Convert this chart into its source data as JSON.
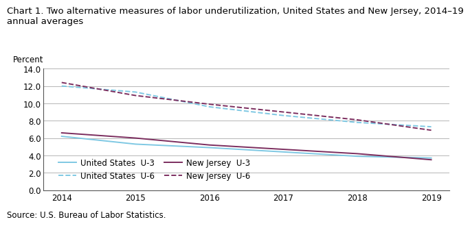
{
  "title_line1": "Chart 1. Two alternative measures of labor underutilization, United States and New Jersey, 2014–19",
  "title_line2": "annual averages",
  "ylabel": "Percent",
  "source": "Source: U.S. Bureau of Labor Statistics.",
  "years": [
    2014,
    2015,
    2016,
    2017,
    2018,
    2019
  ],
  "us_u3": [
    6.2,
    5.3,
    4.9,
    4.4,
    3.9,
    3.7
  ],
  "us_u6": [
    12.0,
    11.3,
    9.6,
    8.6,
    7.8,
    7.3
  ],
  "nj_u3": [
    6.6,
    6.0,
    5.2,
    4.7,
    4.2,
    3.5
  ],
  "nj_u6": [
    12.4,
    10.9,
    9.9,
    9.0,
    8.1,
    6.9
  ],
  "us_u3_color": "#7EC8E3",
  "us_u6_color": "#7EC8E3",
  "nj_u3_color": "#7B2D5E",
  "nj_u6_color": "#7B2D5E",
  "ylim": [
    0.0,
    14.0
  ],
  "yticks": [
    0.0,
    2.0,
    4.0,
    6.0,
    8.0,
    10.0,
    12.0,
    14.0
  ],
  "xticks": [
    2014,
    2015,
    2016,
    2017,
    2018,
    2019
  ],
  "grid_color": "#aaaaaa",
  "bg_color": "#ffffff",
  "legend_labels": [
    "United States  U-3",
    "United States  U-6",
    "New Jersey  U-3",
    "New Jersey  U-6"
  ],
  "title_fontsize": 9.5,
  "axis_label_fontsize": 8.5,
  "tick_fontsize": 8.5,
  "source_fontsize": 8.5,
  "legend_fontsize": 8.5
}
